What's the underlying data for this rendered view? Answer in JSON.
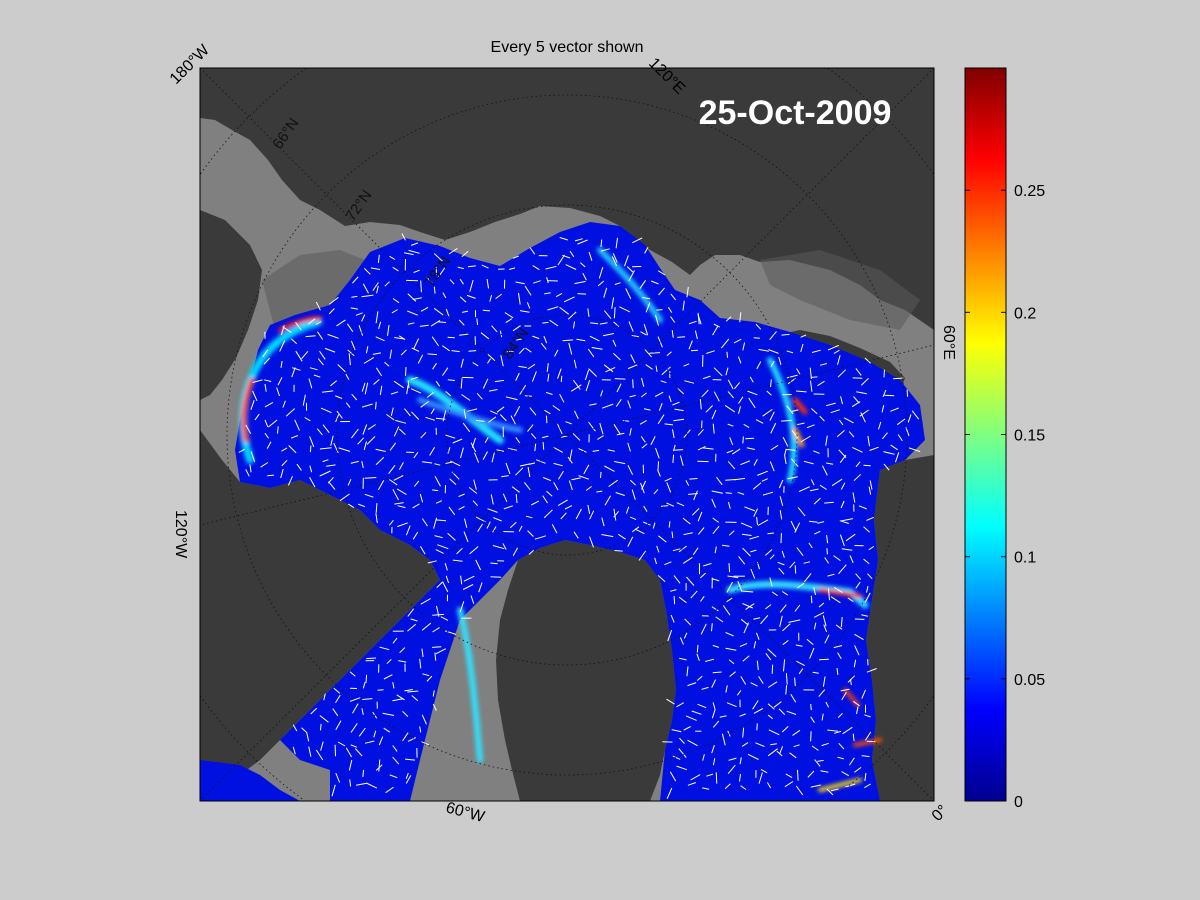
{
  "figure": {
    "title": "Every 5 vector shown",
    "date_label": "25-Oct-2009"
  },
  "map": {
    "longitude_labels": [
      {
        "id": "lon-180w",
        "text": "180°W"
      },
      {
        "id": "lon-120e",
        "text": "120°E"
      },
      {
        "id": "lon-60e",
        "text": "60°E"
      },
      {
        "id": "lon-0",
        "text": "0°"
      },
      {
        "id": "lon-60w",
        "text": "60°W"
      },
      {
        "id": "lon-120w",
        "text": "120°W"
      }
    ],
    "latitude_labels": [
      {
        "id": "lat-66n",
        "text": "66°N"
      },
      {
        "id": "lat-72n",
        "text": "72°N"
      },
      {
        "id": "lat-78n",
        "text": "78°N"
      },
      {
        "id": "lat-84n",
        "text": "84°N"
      }
    ],
    "colors": {
      "land": "#3a3a3a",
      "ocean_no_data": "#808080",
      "sea_ice_low": "#0000d8",
      "vectors": "#ffffff"
    }
  },
  "colorbar": {
    "colormap": "jet",
    "range": [
      0,
      0.3
    ],
    "ticks": [
      "0",
      "0.05",
      "0.1",
      "0.15",
      "0.2",
      "0.25"
    ]
  }
}
